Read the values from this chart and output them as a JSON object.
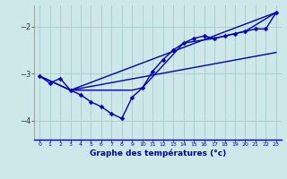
{
  "xlabel": "Graphe des températures (°c)",
  "bg_color": "#cce8e8",
  "grid_color": "#aacccc",
  "line_color": "#0000bb",
  "xlim": [
    -0.5,
    23.5
  ],
  "ylim": [
    -4.4,
    -1.55
  ],
  "yticks": [
    -4,
    -3,
    -2
  ],
  "xticks": [
    0,
    1,
    2,
    3,
    4,
    5,
    6,
    7,
    8,
    9,
    10,
    11,
    12,
    13,
    14,
    15,
    16,
    17,
    18,
    19,
    20,
    21,
    22,
    23
  ],
  "lines": [
    {
      "x": [
        0,
        1,
        2,
        3,
        4,
        5,
        6,
        7,
        8,
        9,
        10,
        11,
        12,
        13,
        14,
        15,
        16,
        17,
        18,
        19,
        20,
        21,
        22,
        23
      ],
      "y": [
        -3.05,
        -3.2,
        -3.1,
        -3.35,
        -3.45,
        -3.6,
        -3.7,
        -3.85,
        -3.95,
        -3.5,
        -3.3,
        -2.95,
        -2.7,
        -2.5,
        -2.35,
        -2.25,
        -2.2,
        -2.25,
        -2.2,
        -2.15,
        -2.1,
        -2.05,
        -2.05,
        -1.7
      ],
      "marker": "D",
      "markersize": 2.5,
      "linewidth": 1.0
    },
    {
      "x": [
        0,
        3,
        23
      ],
      "y": [
        -3.05,
        -3.35,
        -1.7
      ],
      "marker": null,
      "linewidth": 1.0
    },
    {
      "x": [
        0,
        3,
        23
      ],
      "y": [
        -3.05,
        -3.35,
        -2.55
      ],
      "marker": null,
      "linewidth": 1.0
    },
    {
      "x": [
        3,
        9,
        10,
        14,
        17,
        20,
        23
      ],
      "y": [
        -3.35,
        -3.35,
        -3.3,
        -2.35,
        -2.25,
        -2.1,
        -1.7
      ],
      "marker": null,
      "linewidth": 1.0
    }
  ]
}
